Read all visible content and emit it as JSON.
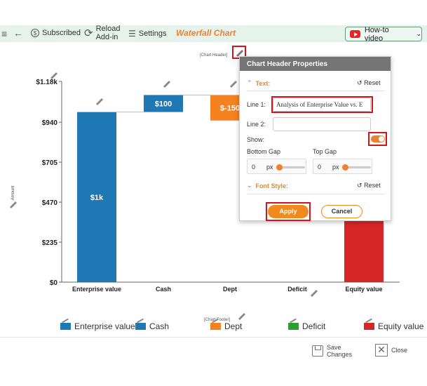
{
  "toolbar": {
    "subscribed": "Subscribed",
    "reload_line1": "Reload",
    "reload_line2": "Add-in",
    "settings": "Settings",
    "title": "Waterfall Chart",
    "how_to_video": "How-to video"
  },
  "chart": {
    "header_placeholder": "[Chart Header]",
    "footer_placeholder": "[Chart Footer]",
    "y_axis_label": "Amount"
  },
  "chart_data": {
    "type": "bar",
    "categories": [
      "Enterprise value",
      "Cash",
      "Dept",
      "Deficit",
      "Equity value"
    ],
    "series": [
      {
        "name": "Enterprise value",
        "base": 0,
        "value": 1000,
        "label": "$1k",
        "color": "#1f77b4"
      },
      {
        "name": "Cash",
        "base": 1000,
        "value": 100,
        "label": "$100",
        "color": "#1f77b4"
      },
      {
        "name": "Dept",
        "base": 950,
        "value": 150,
        "label": "$-150",
        "color": "#f58220"
      },
      {
        "name": "Deficit",
        "base": 0,
        "value": 0,
        "label": "",
        "color": "#2ca02c"
      },
      {
        "name": "Equity value",
        "base": 0,
        "value": 950,
        "label": "",
        "color": "#d62728"
      }
    ],
    "y_ticks": [
      "$0",
      "$235",
      "$470",
      "$705",
      "$940",
      "$1.18k"
    ],
    "ylim": [
      0,
      1180
    ],
    "legend": [
      "Enterprise value",
      "Cash",
      "Dept",
      "Deficit",
      "Equity value"
    ],
    "legend_colors": [
      "#1f77b4",
      "#1f77b4",
      "#f58220",
      "#2ca02c",
      "#d62728"
    ]
  },
  "panel": {
    "title": "Chart Header Properties",
    "text_section": "Text:",
    "reset": "Reset",
    "line1_label": "Line 1:",
    "line1_value": "Analysis of Enterprise Value vs. E",
    "line2_label": "Line 2:",
    "line2_value": "",
    "show_label": "Show:",
    "bottom_gap_label": "Bottom Gap",
    "top_gap_label": "Top Gap",
    "bottom_gap_value": "0",
    "top_gap_value": "0",
    "unit": "px",
    "font_style_section": "Font Style:",
    "apply": "Apply",
    "cancel": "Cancel"
  },
  "footer": {
    "save_line1": "Save",
    "save_line2": "Changes",
    "close": "Close"
  }
}
